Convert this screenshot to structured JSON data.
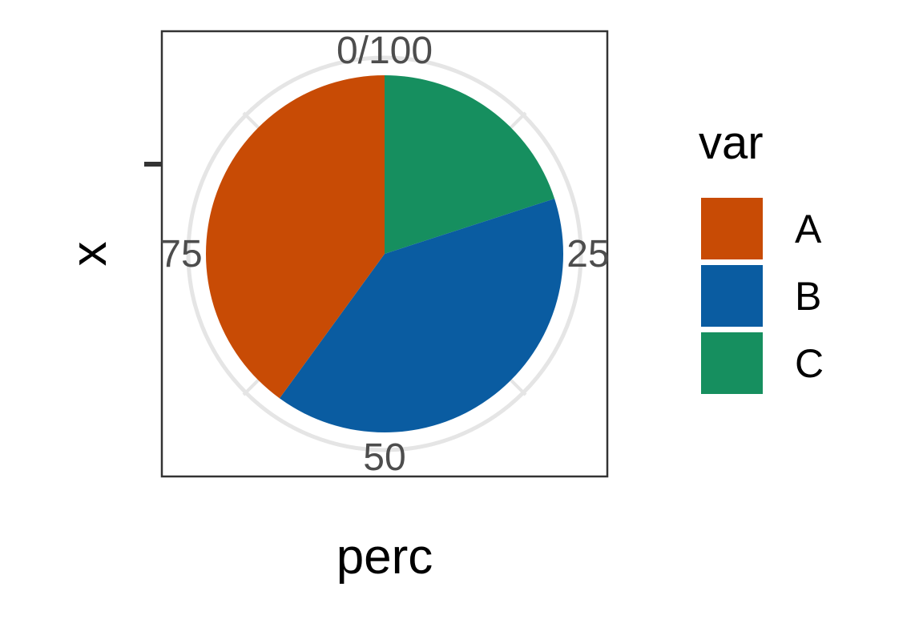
{
  "chart_data": {
    "type": "pie",
    "coord": "polar",
    "xlabel": "perc",
    "ylabel": "x",
    "theta_ticks": [
      {
        "label": "0/100",
        "value": 0
      },
      {
        "label": "25",
        "value": 25
      },
      {
        "label": "50",
        "value": 50
      },
      {
        "label": "75",
        "value": 75
      }
    ],
    "theta_range": [
      0,
      100
    ],
    "grid": true,
    "legend": {
      "title": "var",
      "placement": "right",
      "entries": [
        "A",
        "B",
        "C"
      ]
    },
    "slices": [
      {
        "label": "C",
        "value": 20,
        "color": "#168F5F"
      },
      {
        "label": "B",
        "value": 40,
        "color": "#0A5CA1"
      },
      {
        "label": "A",
        "value": 40,
        "color": "#C84B05"
      }
    ],
    "colors": {
      "gridline": "#E5E5E5",
      "panel_border": "#333333",
      "tick_label": "#4D4D4D",
      "axis_title": "#000000"
    }
  }
}
